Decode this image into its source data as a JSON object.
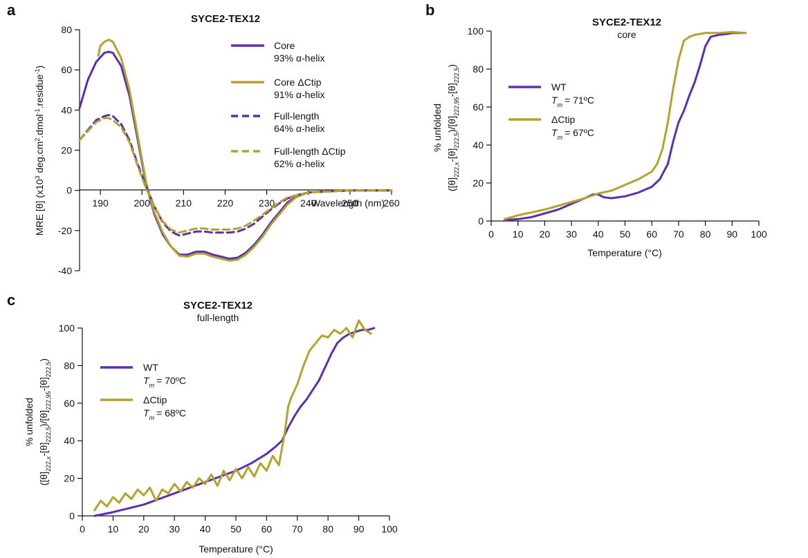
{
  "chart_data": [
    {
      "panel": "a",
      "type": "line",
      "title": "SYCE2-TEX12",
      "xlabel": "Wavelength (nm)",
      "ylabel": "MRE [θ] (x10³ deg.cm².dmol⁻¹.residue⁻¹)",
      "xlim": [
        185,
        260
      ],
      "ylim": [
        -40,
        80
      ],
      "x_ticks": [
        "190",
        "200",
        "210",
        "220",
        "230",
        "240",
        "250",
        "260"
      ],
      "y_ticks": [
        "-40",
        "-20",
        "0",
        "20",
        "40",
        "60",
        "80"
      ],
      "legend_placement": "top-right",
      "colors": {
        "wt": "#5b2db4",
        "ctip": "#b5a22a"
      },
      "series": [
        {
          "name": "Core",
          "note": "93% α-helix",
          "color": "#5b2db4",
          "dash": false,
          "x": [
            185,
            187,
            189,
            191,
            192,
            193,
            195,
            197,
            199,
            201,
            203,
            205,
            207,
            209,
            211,
            213,
            215,
            217,
            219,
            221,
            223,
            225,
            227,
            229,
            231,
            233,
            235,
            237,
            240,
            245,
            250,
            255,
            260
          ],
          "y": [
            41,
            55,
            64,
            68.5,
            69,
            68.5,
            62,
            47,
            25,
            3,
            -12,
            -22,
            -28,
            -32,
            -32,
            -30.5,
            -30.5,
            -32,
            -33,
            -34,
            -33.5,
            -31,
            -27,
            -22,
            -16,
            -11,
            -6,
            -3,
            -1,
            -0.5,
            0,
            0,
            0
          ]
        },
        {
          "name": "Core ΔCtip",
          "note": "91% α-helix",
          "color": "#b5a22a",
          "dash": false,
          "x": [
            189.5,
            190,
            191,
            192,
            193,
            195,
            197,
            199,
            201,
            203,
            205,
            207,
            209,
            211,
            213,
            215,
            217,
            219,
            221,
            223,
            225,
            227,
            229,
            231,
            233,
            235,
            237,
            240,
            245,
            250,
            255,
            260
          ],
          "y": [
            67,
            72,
            74,
            75,
            74,
            66,
            50,
            27,
            4,
            -11,
            -21,
            -28,
            -32.5,
            -33,
            -31.5,
            -31.5,
            -33,
            -34,
            -35,
            -34.5,
            -32,
            -28,
            -23,
            -17,
            -12,
            -7,
            -3.5,
            -1,
            -0.5,
            0,
            0,
            0
          ]
        },
        {
          "name": "Full-length",
          "note": "64% α-helix",
          "color": "#5b2db4",
          "dash": true,
          "x": [
            185,
            187,
            189,
            191,
            192,
            193,
            195,
            197,
            199,
            201,
            203,
            205,
            207,
            209,
            211,
            213,
            215,
            217,
            219,
            221,
            223,
            225,
            227,
            229,
            231,
            233,
            235,
            237,
            240,
            245,
            250,
            255,
            260
          ],
          "y": [
            25,
            30,
            35,
            37,
            37.5,
            37,
            33,
            25,
            13,
            2,
            -8,
            -16,
            -20.5,
            -22.5,
            -21.5,
            -20.5,
            -20.5,
            -21,
            -21,
            -21,
            -20.5,
            -19,
            -16.5,
            -13,
            -9.5,
            -6.5,
            -4,
            -2.5,
            -1,
            -0.5,
            0,
            0,
            0
          ]
        },
        {
          "name": "Full-length ΔCtip",
          "note": "62% α-helix",
          "color": "#b5a22a",
          "dash": true,
          "x": [
            185,
            187,
            189,
            191,
            192,
            193,
            195,
            197,
            199,
            201,
            203,
            205,
            207,
            209,
            211,
            213,
            215,
            217,
            219,
            221,
            223,
            225,
            227,
            229,
            231,
            233,
            235,
            237,
            240,
            245,
            250,
            255,
            260
          ],
          "y": [
            25,
            29.5,
            34,
            36,
            36,
            35,
            31.5,
            24,
            12,
            1,
            -8,
            -15.5,
            -19.5,
            -21,
            -20,
            -19,
            -19,
            -19.5,
            -19.5,
            -19.5,
            -19,
            -17.5,
            -15,
            -12,
            -9,
            -6,
            -3.5,
            -2.5,
            -1,
            -0.5,
            0,
            0,
            0
          ]
        }
      ]
    },
    {
      "panel": "b",
      "type": "line",
      "title": "SYCE2-TEX12",
      "subtitle": "core",
      "xlabel": "Temperature (°C)",
      "ylabel": "% unfolded",
      "ylabel2": "([θ]222,x-[θ]222,5)/[θ]222,95-[θ]222,5)",
      "xlim": [
        0,
        100
      ],
      "ylim": [
        0,
        100
      ],
      "x_ticks": [
        "0",
        "10",
        "20",
        "30",
        "40",
        "50",
        "60",
        "70",
        "80",
        "90",
        "100"
      ],
      "y_ticks": [
        "0",
        "20",
        "40",
        "60",
        "80",
        "100"
      ],
      "legend_placement": "center-left",
      "series": [
        {
          "name": "WT",
          "note": "= 71ºC",
          "color": "#5b2db4",
          "x": [
            5,
            10,
            15,
            20,
            25,
            30,
            35,
            38,
            40,
            42,
            45,
            50,
            55,
            60,
            63,
            66,
            68,
            70,
            72,
            74,
            76,
            78,
            80,
            82,
            85,
            88,
            90,
            92,
            95
          ],
          "y": [
            0.5,
            1,
            2,
            4,
            6,
            9,
            12,
            14,
            14,
            12.5,
            12,
            13,
            15,
            18,
            22,
            30,
            42,
            52,
            58,
            66,
            73,
            82,
            92,
            97,
            98,
            98.5,
            99,
            99,
            99
          ]
        },
        {
          "name": "ΔCtip",
          "note": "= 67ºC",
          "color": "#b5a22a",
          "x": [
            5,
            10,
            15,
            20,
            25,
            30,
            35,
            40,
            45,
            50,
            55,
            60,
            62,
            64,
            66,
            68,
            70,
            72,
            74,
            76,
            78,
            80,
            85,
            90,
            95
          ],
          "y": [
            1,
            3,
            4.5,
            6,
            8,
            10,
            12,
            14.5,
            16,
            19,
            22,
            26,
            30,
            38,
            52,
            70,
            85,
            95,
            97,
            98,
            98.5,
            99,
            99,
            99.5,
            99
          ]
        }
      ]
    },
    {
      "panel": "c",
      "type": "line",
      "title": "SYCE2-TEX12",
      "subtitle": "full-length",
      "xlabel": "Temperature (°C)",
      "ylabel": "% unfolded",
      "ylabel2": "([θ]222,x-[θ]222,5)/[θ]222,95-[θ]222,5)",
      "xlim": [
        0,
        100
      ],
      "ylim": [
        0,
        100
      ],
      "x_ticks": [
        "0",
        "10",
        "20",
        "30",
        "40",
        "50",
        "60",
        "70",
        "80",
        "90",
        "100"
      ],
      "y_ticks": [
        "0",
        "20",
        "40",
        "60",
        "80",
        "100"
      ],
      "legend_placement": "center-left",
      "series": [
        {
          "name": "WT",
          "note": "= 70ºC",
          "color": "#5b2db4",
          "x": [
            4,
            10,
            20,
            30,
            40,
            50,
            55,
            60,
            63,
            65,
            67,
            69,
            71,
            73,
            75,
            77,
            79,
            81,
            83,
            85,
            87,
            89,
            91,
            93,
            95
          ],
          "y": [
            0,
            2,
            6,
            12,
            18,
            24,
            28,
            33,
            37,
            40,
            47,
            53,
            58,
            62,
            67,
            72,
            79,
            86,
            92,
            95,
            97,
            98,
            99,
            99,
            100
          ]
        },
        {
          "name": "ΔCtip",
          "note": "= 68ºC",
          "color": "#b5a22a",
          "x": [
            4,
            6,
            8,
            10,
            12,
            14,
            16,
            18,
            20,
            22,
            24,
            26,
            28,
            30,
            32,
            34,
            36,
            38,
            40,
            42,
            44,
            46,
            48,
            50,
            52,
            54,
            56,
            58,
            60,
            62,
            64,
            66,
            67,
            68,
            70,
            72,
            74,
            76,
            78,
            80,
            82,
            84,
            86,
            88,
            90,
            92,
            94
          ],
          "y": [
            3,
            8,
            5,
            10,
            7,
            12,
            9,
            14,
            11,
            15,
            8,
            14,
            12,
            17,
            13,
            18,
            15,
            20,
            17,
            22,
            16,
            24,
            19,
            25,
            20,
            26,
            21,
            28,
            24,
            32,
            27,
            45,
            58,
            63,
            70,
            80,
            88,
            92,
            96,
            95,
            99,
            97,
            100,
            95,
            104,
            99,
            97
          ]
        }
      ]
    }
  ],
  "axis_labels": {
    "a": {
      "ylabel_main": "MRE [θ] (x10",
      "ylabel_sup1": "3",
      "ylabel_mid": " deg.cm",
      "ylabel_sup2": "2",
      "ylabel_mid2": ".dmol",
      "ylabel_sup3": "-1",
      "ylabel_end": ".residue",
      "ylabel_sup4": "-1",
      "ylabel_close": ")"
    },
    "tm_symbol": "T",
    "tm_sub": "m",
    "theta_expr": {
      "p1": "([θ]",
      "s1": "222,x",
      "p2": "-[θ]",
      "s2": "222,5",
      "p3": ")/[θ]",
      "s3": "222,95",
      "p4": "-[θ]",
      "s4": "222,5",
      "p5": ")"
    }
  }
}
